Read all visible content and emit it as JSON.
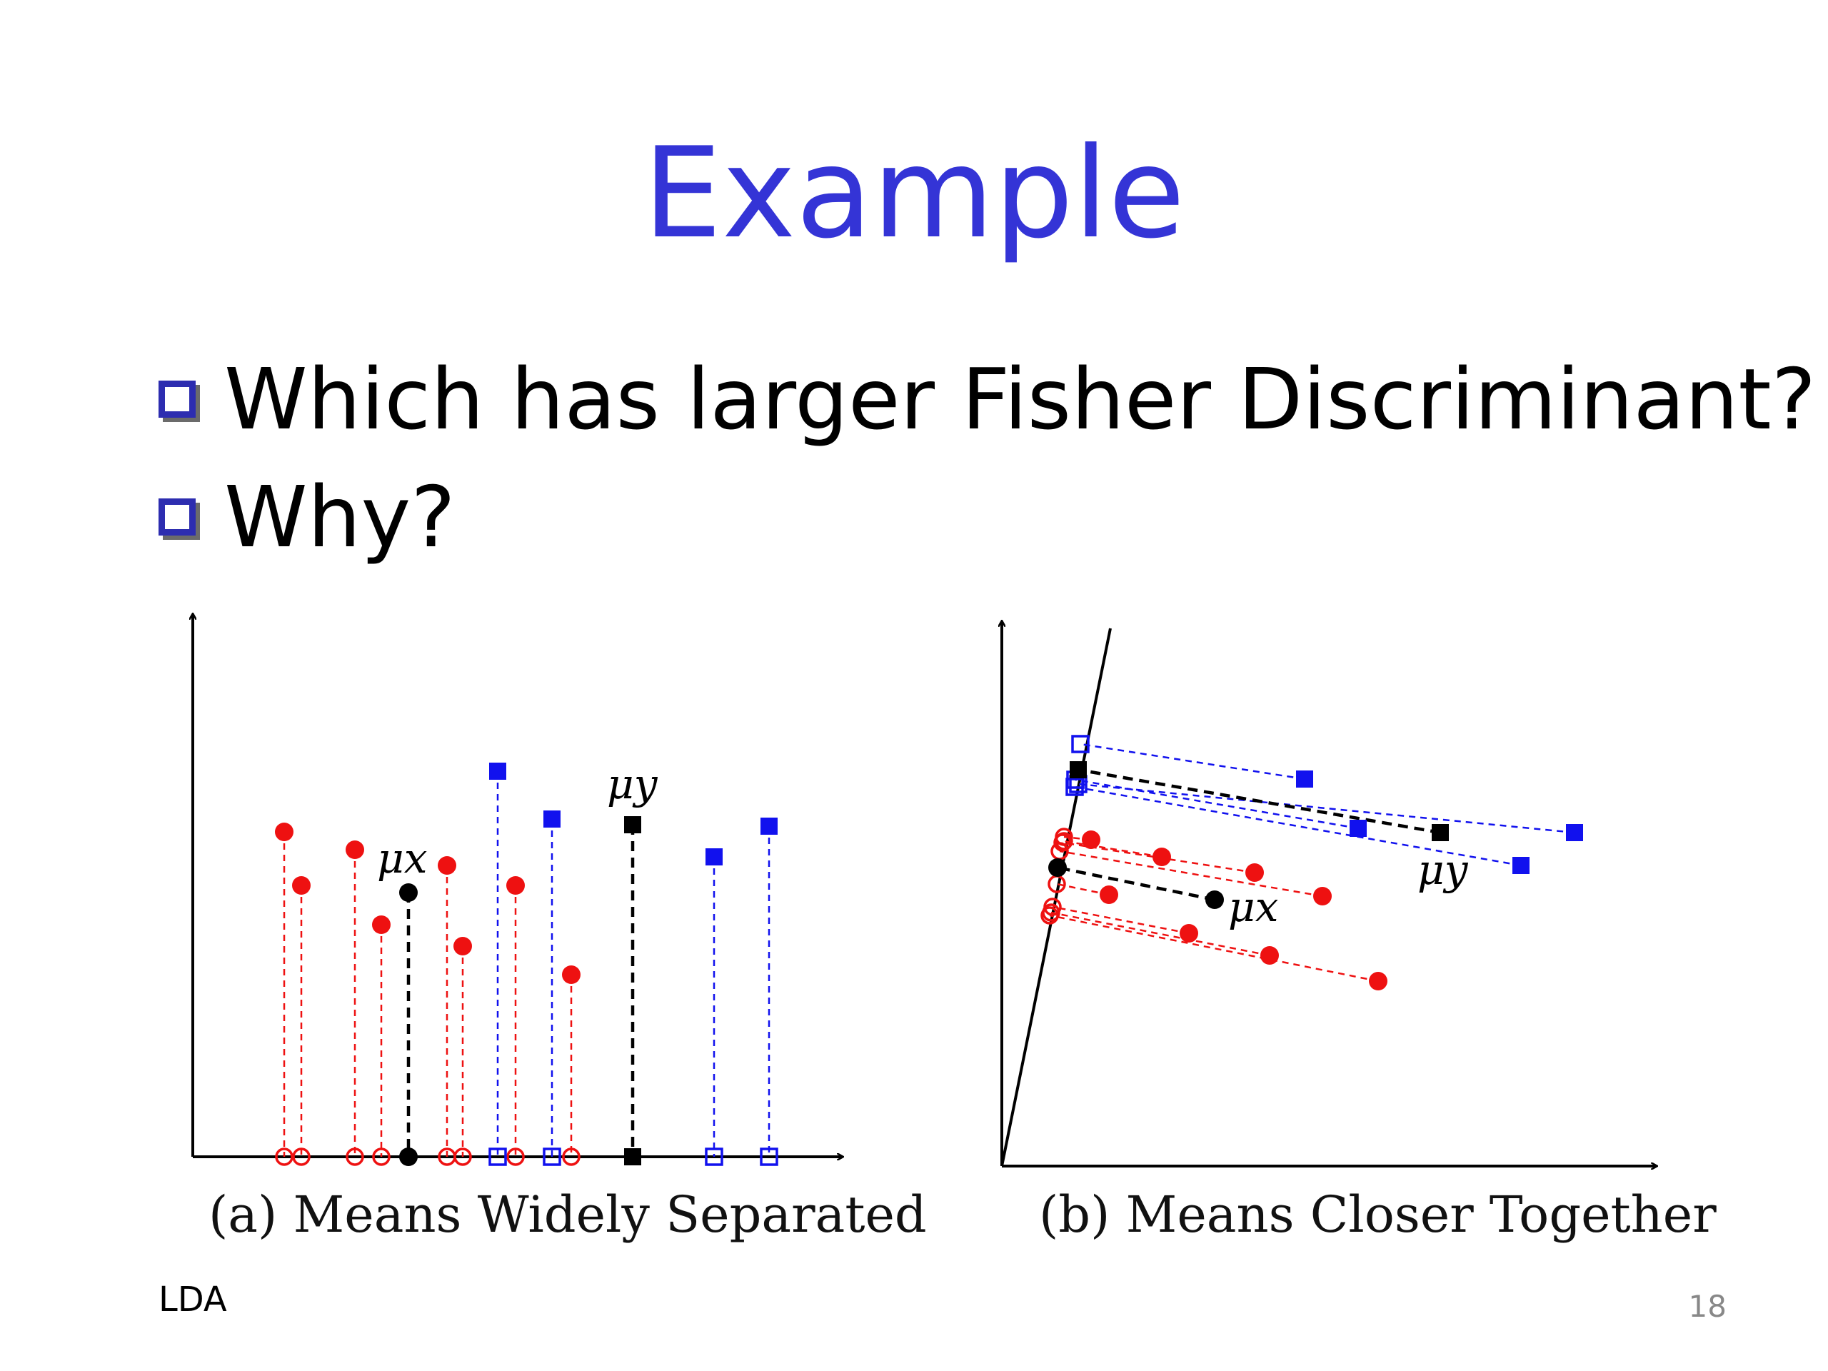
{
  "slide": {
    "title": "Example",
    "bullets": [
      "Which has larger Fisher Discriminant?",
      "Why?"
    ],
    "footer_left": "LDA",
    "page_number": "18"
  },
  "figure_a": {
    "caption": "(a) Means Widely Separated",
    "mean_x_label": "μx",
    "mean_y_label": "μy"
  },
  "figure_b": {
    "caption": "(b) Means Closer Together",
    "mean_x_label": "μx",
    "mean_y_label": "μy"
  },
  "colors": {
    "class_x": "#ee1111",
    "class_y": "#1111ee",
    "mean": "#000000",
    "title": "#3434d6"
  }
}
